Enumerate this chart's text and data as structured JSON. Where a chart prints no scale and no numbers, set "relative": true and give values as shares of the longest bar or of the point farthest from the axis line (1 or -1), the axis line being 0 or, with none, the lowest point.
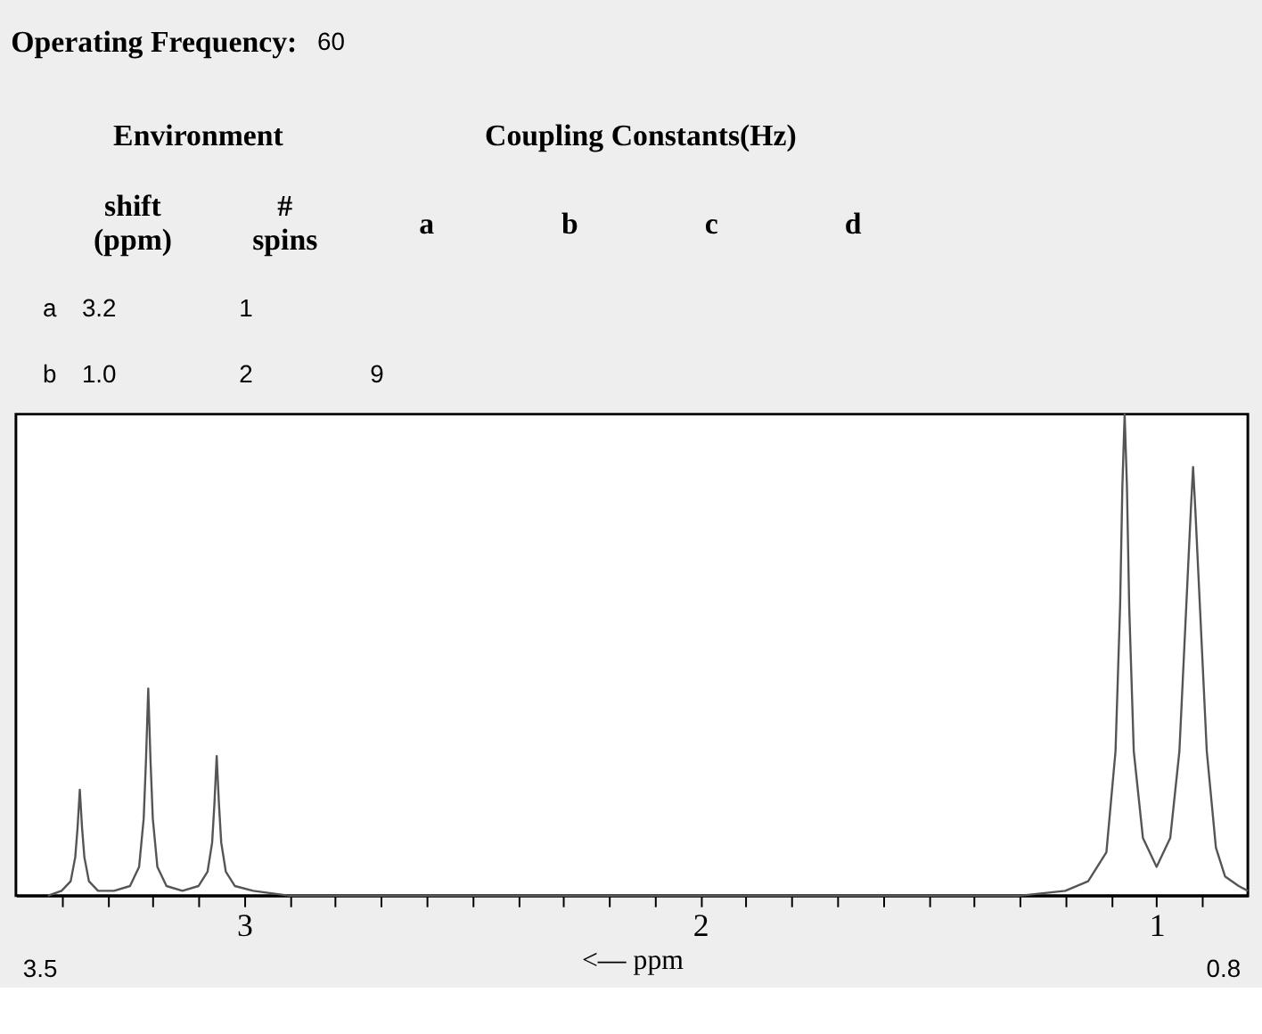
{
  "chart_data": [
    {
      "type": "other",
      "annotations": [
        "Operating Frequency:",
        "60",
        "Environment",
        "Coupling Constants(Hz)",
        "shift\n(ppm)",
        "#\nspins",
        "a",
        "b",
        "c",
        "d",
        "a",
        "3.2",
        "1",
        "b",
        "1.0",
        "2",
        "9"
      ]
    },
    {
      "type": "line",
      "relative": true,
      "xlabel": "<—   ppm",
      "xlim": [
        3.5,
        0.8
      ],
      "xticks": [
        {
          "value": 3.4,
          "label": null
        },
        {
          "value": 3.3,
          "label": null
        },
        {
          "value": 3.2,
          "label": null
        },
        {
          "value": 3.1,
          "label": null
        },
        3,
        {
          "value": 2.9,
          "label": null
        },
        {
          "value": 2.8,
          "label": null
        },
        {
          "value": 2.7,
          "label": null
        },
        {
          "value": 2.6,
          "label": null
        },
        {
          "value": 2.5,
          "label": null
        },
        {
          "value": 2.4,
          "label": null
        },
        {
          "value": 2.3,
          "label": null
        },
        {
          "value": 2.2,
          "label": null
        },
        {
          "value": 2.1,
          "label": null
        },
        2,
        {
          "value": 1.9,
          "label": null
        },
        {
          "value": 1.8,
          "label": null
        },
        {
          "value": 1.7,
          "label": null
        },
        {
          "value": 1.6,
          "label": null
        },
        {
          "value": 1.5,
          "label": null
        },
        {
          "value": 1.4,
          "label": null
        },
        {
          "value": 1.3,
          "label": null
        },
        {
          "value": 1.2,
          "label": null
        },
        {
          "value": 1.1,
          "label": null
        },
        1,
        {
          "value": 0.9,
          "label": null
        }
      ],
      "grid": false,
      "annotations": [
        "3.5",
        "0.8"
      ],
      "series": [
        {
          "color": "#555555",
          "x": [
            3.43,
            3.4,
            3.38,
            3.37,
            3.365,
            3.36,
            3.355,
            3.35,
            3.34,
            3.32,
            3.285,
            3.25,
            3.23,
            3.22,
            3.215,
            3.21,
            3.205,
            3.2,
            3.19,
            3.17,
            3.135,
            3.1,
            3.08,
            3.07,
            3.065,
            3.06,
            3.055,
            3.05,
            3.04,
            3.02,
            2.98,
            2.9,
            1.3,
            1.2,
            1.15,
            1.11,
            1.09,
            1.08,
            1.075,
            1.07,
            1.065,
            1.06,
            1.05,
            1.03,
            1.0,
            0.97,
            0.95,
            0.935,
            0.925,
            0.92,
            0.915,
            0.905,
            0.89,
            0.87,
            0.85,
            0.82,
            0.8
          ],
          "values": [
            0.0,
            0.01,
            0.03,
            0.08,
            0.14,
            0.22,
            0.14,
            0.08,
            0.03,
            0.01,
            0.01,
            0.02,
            0.06,
            0.16,
            0.28,
            0.43,
            0.28,
            0.16,
            0.06,
            0.02,
            0.01,
            0.02,
            0.05,
            0.11,
            0.19,
            0.29,
            0.19,
            0.11,
            0.05,
            0.02,
            0.01,
            0.0,
            0.0,
            0.01,
            0.03,
            0.09,
            0.3,
            0.6,
            0.85,
            1.0,
            0.85,
            0.6,
            0.3,
            0.12,
            0.06,
            0.12,
            0.3,
            0.6,
            0.8,
            0.89,
            0.8,
            0.6,
            0.3,
            0.1,
            0.04,
            0.02,
            0.01
          ]
        }
      ]
    }
  ]
}
